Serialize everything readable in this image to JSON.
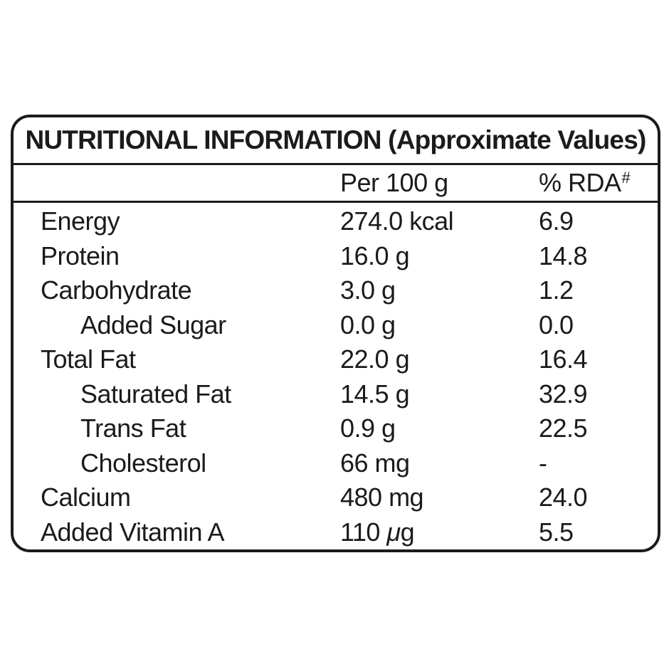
{
  "table": {
    "title": "NUTRITIONAL INFORMATION (Approximate Values)",
    "columns": {
      "amount": "Per 100 g",
      "rda": "% RDA",
      "rda_superscript": "#"
    },
    "rows": [
      {
        "label": "Energy",
        "indent": false,
        "amount": "274.0 kcal",
        "rda": "6.9"
      },
      {
        "label": "Protein",
        "indent": false,
        "amount": "16.0 g",
        "rda": "14.8"
      },
      {
        "label": "Carbohydrate",
        "indent": false,
        "amount": "3.0 g",
        "rda": "1.2"
      },
      {
        "label": "Added Sugar",
        "indent": true,
        "amount": "0.0 g",
        "rda": "0.0"
      },
      {
        "label": "Total Fat",
        "indent": false,
        "amount": "22.0 g",
        "rda": "16.4"
      },
      {
        "label": "Saturated Fat",
        "indent": true,
        "amount": "14.5 g",
        "rda": "32.9"
      },
      {
        "label": "Trans Fat",
        "indent": true,
        "amount": "0.9 g",
        "rda": "22.5"
      },
      {
        "label": "Cholesterol",
        "indent": true,
        "amount": "66 mg",
        "rda": "-"
      },
      {
        "label": "Calcium",
        "indent": false,
        "amount": "480 mg",
        "rda": "24.0"
      },
      {
        "label": "Added Vitamin A",
        "indent": false,
        "amount": "110 μg",
        "rda": "5.5"
      }
    ],
    "colors": {
      "text": "#1b1b1b",
      "background": "#ffffff"
    }
  }
}
